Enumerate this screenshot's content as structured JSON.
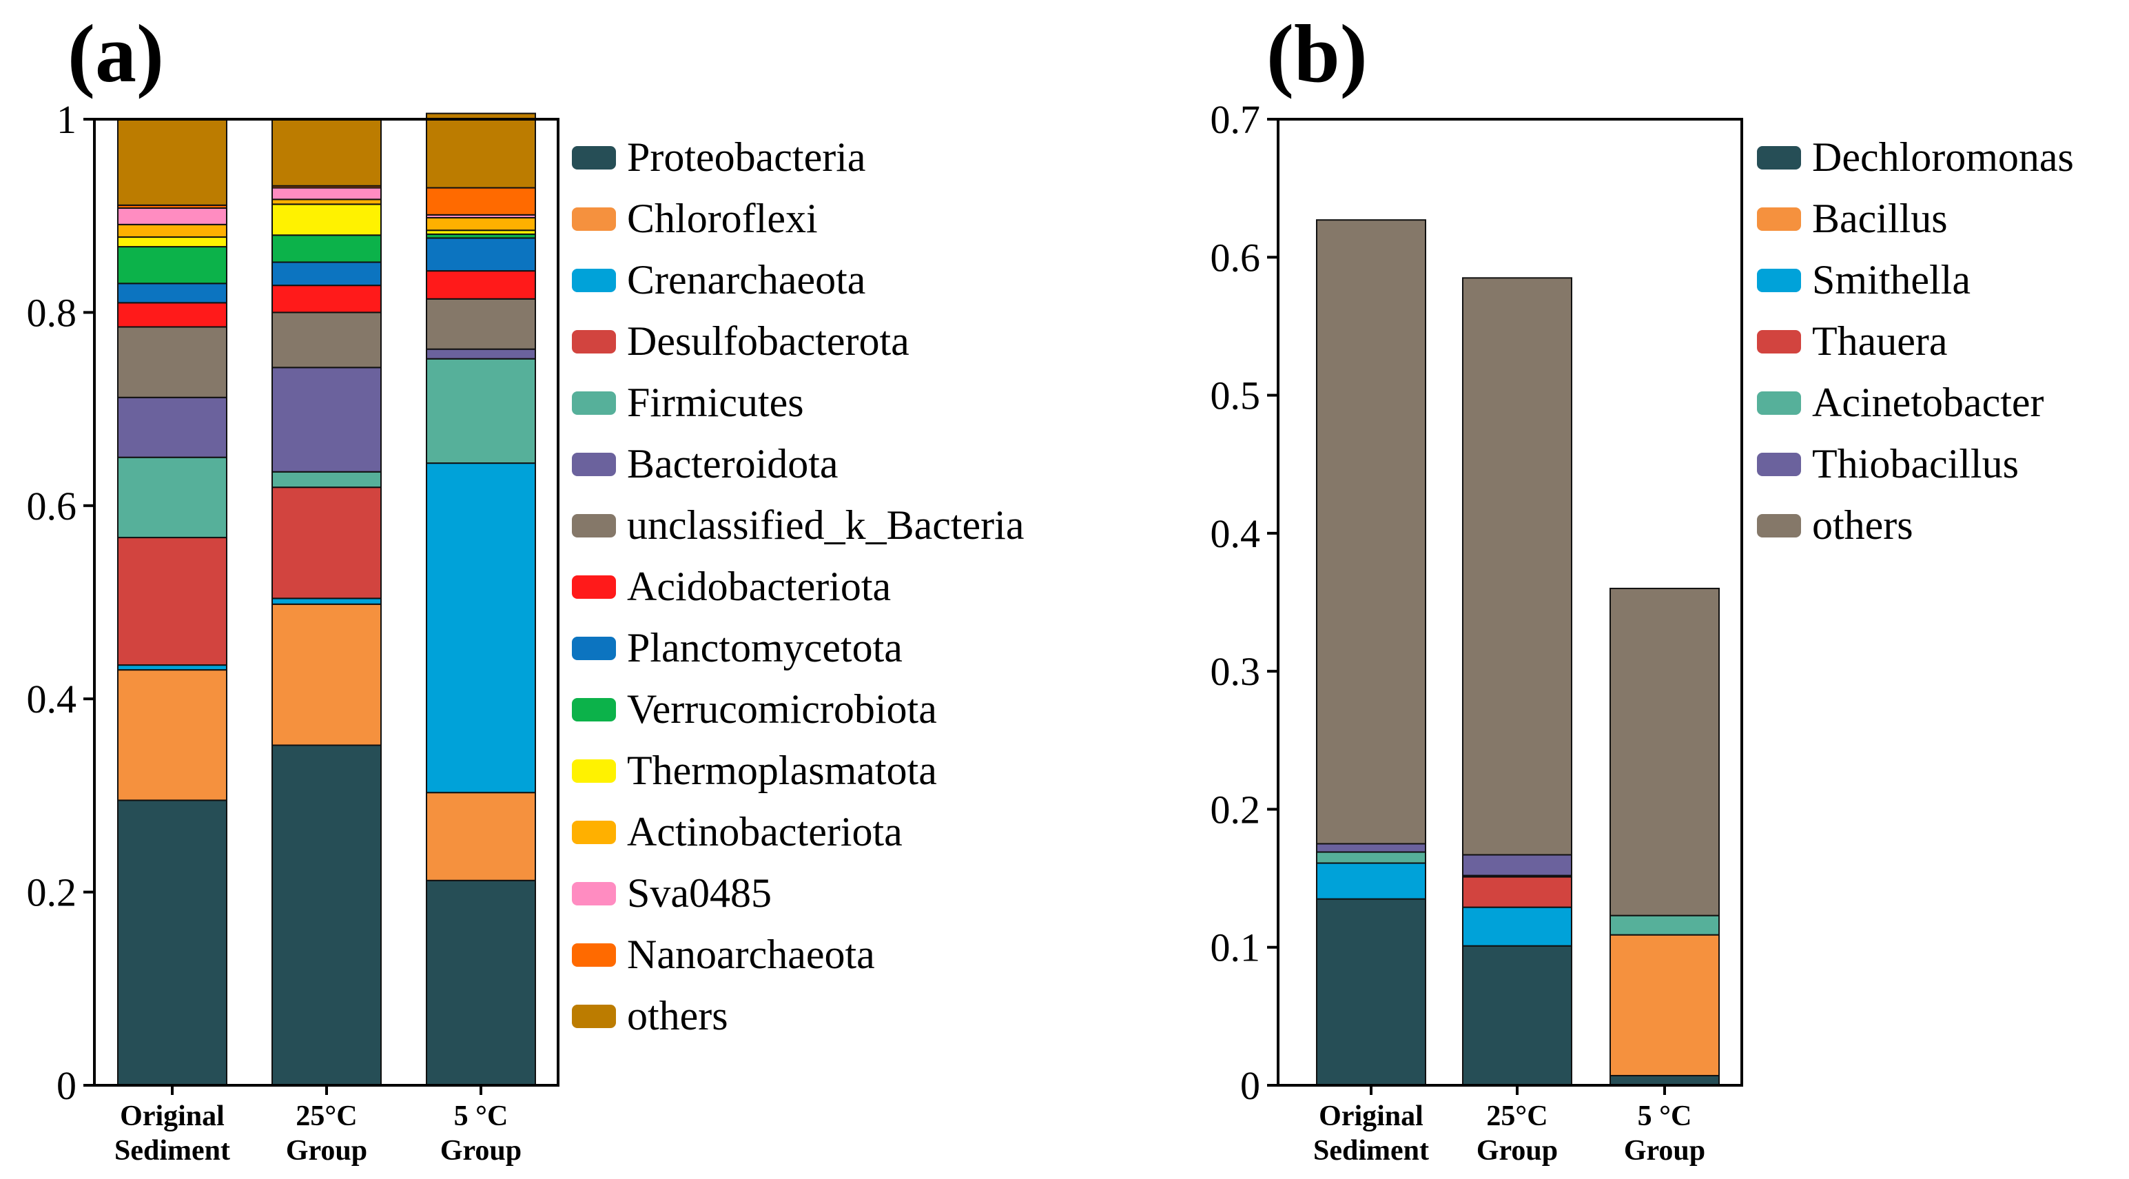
{
  "chart_data": [
    {
      "type": "stacked-bar",
      "panel_label": "(a)",
      "categories": [
        [
          "Original",
          "Sediment"
        ],
        [
          "25°C",
          "Group"
        ],
        [
          "5 °C",
          "Group"
        ]
      ],
      "ylim": [
        0,
        1
      ],
      "yticks": [
        "0",
        "0.2",
        "0.4",
        "0.6",
        "0.8",
        "1"
      ],
      "ytick_values": [
        0,
        0.2,
        0.4,
        0.6,
        0.8,
        1.0
      ],
      "legend_position": "right",
      "series": [
        {
          "name": "Proteobacteria",
          "color": "#264E56",
          "values": [
            0.295,
            0.352,
            0.212
          ]
        },
        {
          "name": "Chloroflexi",
          "color": "#F5913E",
          "values": [
            0.135,
            0.146,
            0.091
          ]
        },
        {
          "name": "Crenarchaeota",
          "color": "#00A2D9",
          "values": [
            0.005,
            0.006,
            0.341
          ]
        },
        {
          "name": "Desulfobacterota",
          "color": "#D2443F",
          "values": [
            0.132,
            0.115,
            0.0
          ]
        },
        {
          "name": "Firmicutes",
          "color": "#56B09A",
          "values": [
            0.083,
            0.016,
            0.108
          ]
        },
        {
          "name": "Bacteroidota",
          "color": "#6B629D",
          "values": [
            0.062,
            0.108,
            0.01
          ]
        },
        {
          "name": "unclassified_k_Bacteria",
          "color": "#857869",
          "values": [
            0.073,
            0.057,
            0.052
          ]
        },
        {
          "name": "Acidobacteriota",
          "color": "#FF1A1A",
          "values": [
            0.025,
            0.028,
            0.029
          ]
        },
        {
          "name": "Planctomycetota",
          "color": "#0C74C0",
          "values": [
            0.02,
            0.024,
            0.034
          ]
        },
        {
          "name": "Verrucomicrobiota",
          "color": "#0CB24A",
          "values": [
            0.038,
            0.028,
            0.004
          ]
        },
        {
          "name": "Thermoplasmatota",
          "color": "#FFF200",
          "values": [
            0.01,
            0.032,
            0.004
          ]
        },
        {
          "name": "Actinobacteriota",
          "color": "#FFB000",
          "values": [
            0.013,
            0.005,
            0.013
          ]
        },
        {
          "name": "Sva0485",
          "color": "#FF8CC1",
          "values": [
            0.017,
            0.012,
            0.003
          ]
        },
        {
          "name": "Nanoarchaeota",
          "color": "#FF6A00",
          "values": [
            0.003,
            0.002,
            0.028
          ]
        },
        {
          "name": "others",
          "color": "#BC7C00",
          "values": [
            0.089,
            0.069,
            0.077
          ]
        }
      ]
    },
    {
      "type": "stacked-bar",
      "panel_label": "(b)",
      "categories": [
        [
          "Original",
          "Sediment"
        ],
        [
          "25°C",
          "Group"
        ],
        [
          "5 °C",
          "Group"
        ]
      ],
      "ylim": [
        0,
        0.7
      ],
      "yticks": [
        "0",
        "0.1",
        "0.2",
        "0.3",
        "0.4",
        "0.5",
        "0.6",
        "0.7"
      ],
      "ytick_values": [
        0,
        0.1,
        0.2,
        0.3,
        0.4,
        0.5,
        0.6,
        0.7
      ],
      "legend_position": "right",
      "series": [
        {
          "name": "Dechloromonas",
          "color": "#264E56",
          "values": [
            0.135,
            0.101,
            0.007
          ]
        },
        {
          "name": "Bacillus",
          "color": "#F5913E",
          "values": [
            0.0,
            0.0,
            0.102
          ]
        },
        {
          "name": "Smithella",
          "color": "#00A2D9",
          "values": [
            0.026,
            0.028,
            0.0
          ]
        },
        {
          "name": "Thauera",
          "color": "#D2443F",
          "values": [
            0.0,
            0.022,
            0.0
          ]
        },
        {
          "name": "Acinetobacter",
          "color": "#56B09A",
          "values": [
            0.008,
            0.001,
            0.014
          ]
        },
        {
          "name": "Thiobacillus",
          "color": "#6B629D",
          "values": [
            0.006,
            0.015,
            0.0
          ]
        },
        {
          "name": "others",
          "color": "#857869",
          "values": [
            0.452,
            0.418,
            0.237
          ]
        }
      ]
    }
  ]
}
